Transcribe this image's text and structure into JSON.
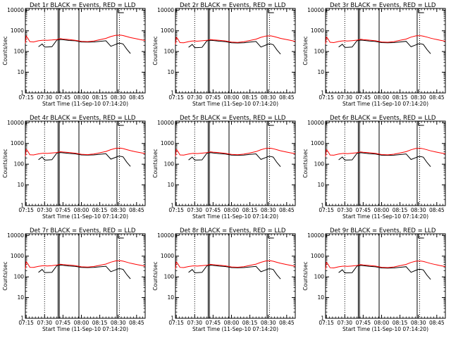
{
  "chart_data": {
    "type": "line",
    "layout": {
      "rows": 3,
      "cols": 3
    },
    "xlabel": "Start Time (11-Sep-10 07:14:20)",
    "ylabel": "Counts/sec",
    "x_ticks": [
      "07:15",
      "07:30",
      "07:45",
      "08:00",
      "08:15",
      "08:30",
      "08:45"
    ],
    "x_tick_values_min": [
      15,
      30,
      45,
      60,
      75,
      90,
      105
    ],
    "xlim_min": [
      14.33,
      112
    ],
    "y_scale": "log",
    "y_ticks": [
      "1",
      "10",
      "100",
      "1000",
      "10000"
    ],
    "ylim": [
      1,
      12000
    ],
    "series_colors": {
      "BLACK": "#000000",
      "RED": "#ff0000"
    },
    "markers": {
      "dotted_min": [
        30,
        91
      ],
      "solid_min": [
        41,
        42,
        58,
        89
      ],
      "bracket_start_min": 90
    },
    "x_min": [
      14.33,
      15,
      16,
      18,
      21,
      25,
      28,
      30,
      32,
      36,
      40,
      43,
      45,
      50,
      55,
      60,
      65,
      70,
      75,
      80,
      84,
      88,
      90,
      92,
      94,
      97,
      100,
      104,
      108,
      112
    ],
    "panels": [
      {
        "title": "Det 1r BLACK = Events, RED = LLD",
        "red": [
          250,
          560,
          470,
          300,
          290,
          330,
          350,
          355,
          345,
          360,
          380,
          420,
          400,
          380,
          350,
          310,
          300,
          320,
          370,
          430,
          530,
          610,
          610,
          620,
          590,
          530,
          470,
          420,
          375,
          340
        ],
        "black": [
          null,
          null,
          null,
          null,
          null,
          170,
          230,
          165,
          165,
          170,
          360,
          380,
          370,
          340,
          330,
          290,
          285,
          290,
          310,
          330,
          180,
          220,
          250,
          250,
          230,
          130,
          80,
          null,
          null,
          null
        ]
      },
      {
        "title": "Det 2r BLACK = Events, RED = LLD",
        "red": [
          220,
          480,
          420,
          270,
          265,
          300,
          320,
          325,
          315,
          330,
          345,
          380,
          365,
          345,
          325,
          285,
          275,
          295,
          340,
          395,
          485,
          560,
          565,
          570,
          540,
          485,
          430,
          385,
          345,
          310
        ],
        "black": [
          null,
          null,
          null,
          null,
          null,
          160,
          220,
          155,
          155,
          160,
          330,
          350,
          340,
          315,
          300,
          265,
          260,
          265,
          285,
          305,
          165,
          205,
          230,
          230,
          215,
          120,
          75,
          null,
          null,
          null
        ]
      },
      {
        "title": "Det 3r BLACK = Events, RED = LLD",
        "red": [
          230,
          500,
          430,
          280,
          270,
          305,
          325,
          330,
          320,
          335,
          355,
          390,
          375,
          355,
          330,
          290,
          280,
          300,
          345,
          400,
          495,
          570,
          575,
          580,
          550,
          495,
          440,
          390,
          350,
          315
        ],
        "black": [
          null,
          null,
          null,
          null,
          null,
          165,
          225,
          160,
          160,
          165,
          335,
          355,
          345,
          320,
          305,
          270,
          265,
          270,
          290,
          310,
          170,
          210,
          235,
          235,
          220,
          125,
          78,
          null,
          null,
          null
        ]
      },
      {
        "title": "Det 4r BLACK = Events, RED = LLD",
        "red": [
          240,
          520,
          450,
          285,
          280,
          315,
          335,
          340,
          330,
          345,
          365,
          400,
          385,
          365,
          340,
          300,
          290,
          310,
          355,
          410,
          505,
          585,
          590,
          595,
          565,
          505,
          450,
          400,
          360,
          325
        ],
        "black": [
          null,
          null,
          null,
          null,
          null,
          165,
          225,
          160,
          160,
          165,
          345,
          365,
          355,
          330,
          315,
          280,
          275,
          280,
          300,
          320,
          175,
          215,
          240,
          240,
          225,
          125,
          78,
          null,
          null,
          null
        ]
      },
      {
        "title": "Det 5r BLACK = Events, RED = LLD",
        "red": [
          235,
          510,
          440,
          280,
          275,
          310,
          330,
          335,
          325,
          340,
          360,
          395,
          380,
          360,
          335,
          295,
          285,
          305,
          350,
          405,
          500,
          580,
          585,
          590,
          560,
          500,
          445,
          395,
          355,
          320
        ],
        "black": [
          null,
          null,
          null,
          null,
          null,
          160,
          220,
          158,
          158,
          162,
          340,
          360,
          350,
          325,
          310,
          275,
          270,
          275,
          295,
          315,
          170,
          210,
          235,
          235,
          220,
          122,
          76,
          null,
          null,
          null
        ]
      },
      {
        "title": "Det 6r BLACK = Events, RED = LLD",
        "red": [
          230,
          505,
          435,
          278,
          272,
          307,
          327,
          332,
          322,
          337,
          357,
          392,
          377,
          357,
          332,
          292,
          282,
          302,
          347,
          402,
          497,
          575,
          580,
          585,
          555,
          497,
          442,
          392,
          352,
          317
        ],
        "black": [
          null,
          null,
          null,
          null,
          null,
          162,
          222,
          158,
          158,
          162,
          338,
          358,
          348,
          322,
          308,
          272,
          268,
          272,
          292,
          312,
          168,
          208,
          232,
          232,
          218,
          122,
          76,
          null,
          null,
          null
        ]
      },
      {
        "title": "Det 7r BLACK = Events, RED = LLD",
        "red": [
          240,
          530,
          455,
          290,
          285,
          320,
          340,
          345,
          335,
          350,
          370,
          405,
          390,
          370,
          345,
          305,
          295,
          315,
          360,
          415,
          510,
          590,
          595,
          600,
          570,
          510,
          455,
          405,
          365,
          330
        ],
        "black": [
          null,
          null,
          null,
          null,
          null,
          165,
          228,
          162,
          162,
          166,
          350,
          370,
          360,
          335,
          320,
          285,
          280,
          285,
          305,
          325,
          178,
          218,
          245,
          245,
          228,
          128,
          80,
          null,
          null,
          null
        ]
      },
      {
        "title": "Det 8r BLACK = Events, RED = LLD",
        "red": [
          238,
          520,
          448,
          286,
          280,
          316,
          336,
          341,
          331,
          346,
          366,
          401,
          386,
          366,
          341,
          301,
          291,
          311,
          356,
          411,
          506,
          586,
          591,
          596,
          566,
          506,
          451,
          401,
          361,
          326
        ],
        "black": [
          null,
          null,
          null,
          null,
          null,
          164,
          226,
          160,
          160,
          164,
          346,
          366,
          356,
          331,
          316,
          281,
          276,
          281,
          301,
          321,
          176,
          216,
          242,
          242,
          226,
          126,
          79,
          null,
          null,
          null
        ]
      },
      {
        "title": "Det 9r BLACK = Events, RED = LLD",
        "red": [
          228,
          500,
          432,
          276,
          270,
          305,
          325,
          330,
          320,
          335,
          355,
          390,
          375,
          355,
          330,
          290,
          280,
          300,
          345,
          400,
          495,
          572,
          578,
          582,
          552,
          495,
          440,
          390,
          350,
          315
        ],
        "black": [
          null,
          null,
          null,
          null,
          null,
          160,
          220,
          156,
          156,
          160,
          336,
          356,
          346,
          320,
          306,
          270,
          266,
          270,
          290,
          310,
          166,
          206,
          230,
          230,
          216,
          120,
          75,
          null,
          null,
          null
        ]
      }
    ]
  }
}
